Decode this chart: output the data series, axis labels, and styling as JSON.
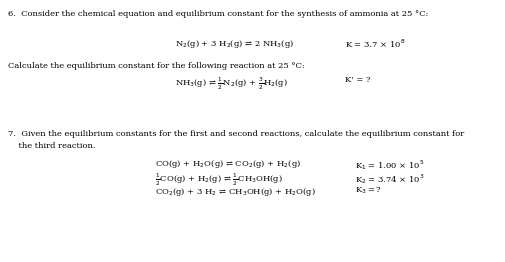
{
  "background_color": "#ffffff",
  "fig_width": 5.06,
  "fig_height": 2.62,
  "dpi": 100,
  "fs_body": 6.0,
  "fs_eq": 6.0,
  "q6_header": "6.  Consider the chemical equation and equilibrium constant for the synthesis of ammonia at 25 °C:",
  "q6_eq1_left": "N$_2$(g) + 3 H$_2$(g) ⇌ 2 NH$_3$(g)",
  "q6_eq1_right": "K = 3.7 × 10$^8$",
  "q6_sub": "Calculate the equilibrium constant for the following reaction at 25 °C:",
  "q6_eq2_left": "NH$_3$(g) ⇌ $\\frac{1}{2}$N$_2$(g) + $\\frac{3}{2}$H$_2$(g)",
  "q6_eq2_right": "K' = ?",
  "q7_header_line1": "7.  Given the equilibrium constants for the first and second reactions, calculate the equilibrium constant for",
  "q7_header_line2": "    the third reaction.",
  "q7_eq1_left": "CO(g) + H$_2$O(g) ⇌ CO$_2$(g) + H$_2$(g)",
  "q7_eq1_right": "K$_1$ = 1.00 × 10$^5$",
  "q7_eq2_left": "$\\frac{1}{2}$CO(g) + H$_2$(g) ⇌ $\\frac{1}{2}$CH$_3$OH(g)",
  "q7_eq2_right": "K$_2$ = 3.74 × 10$^3$",
  "q7_eq3_left": "CO$_2$(g) + 3 H$_2$ ⇌ CH$_3$OH(g) + H$_2$O(g)",
  "q7_eq3_right": "K$_3$ =?"
}
